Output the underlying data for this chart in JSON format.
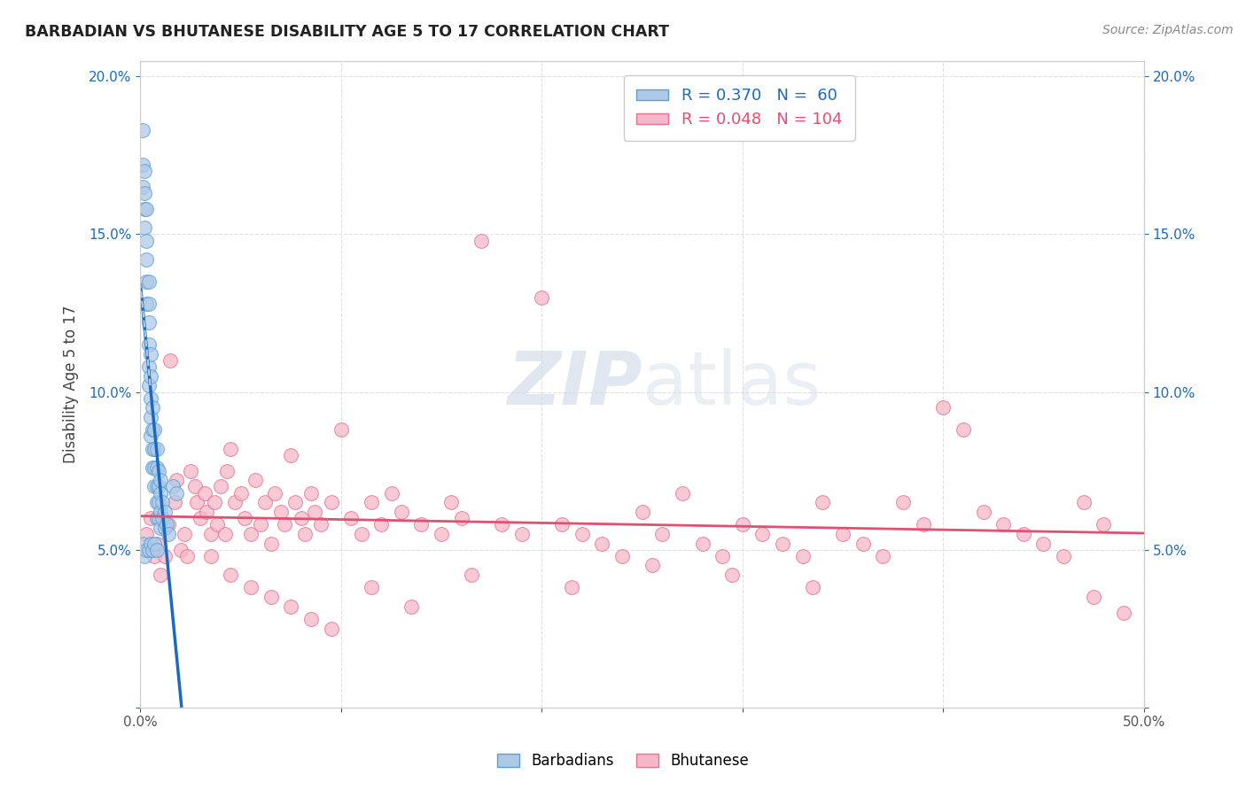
{
  "title": "BARBADIAN VS BHUTANESE DISABILITY AGE 5 TO 17 CORRELATION CHART",
  "source": "Source: ZipAtlas.com",
  "ylabel": "Disability Age 5 to 17",
  "xlim": [
    0.0,
    0.5
  ],
  "ylim": [
    0.0,
    0.205
  ],
  "xticks": [
    0.0,
    0.1,
    0.2,
    0.3,
    0.4,
    0.5
  ],
  "xticklabels": [
    "0.0%",
    "",
    "",
    "",
    "",
    "50.0%"
  ],
  "yticks": [
    0.0,
    0.05,
    0.1,
    0.15,
    0.2
  ],
  "yticklabels_left": [
    "",
    "5.0%",
    "10.0%",
    "15.0%",
    "20.0%"
  ],
  "yticklabels_right": [
    "",
    "5.0%",
    "10.0%",
    "15.0%",
    "20.0%"
  ],
  "legend_barbadian_R": 0.37,
  "legend_barbadian_N": 60,
  "legend_bhutanese_R": 0.048,
  "legend_bhutanese_N": 104,
  "barbadian_color": "#aec9e8",
  "bhutanese_color": "#f4b8c8",
  "barbadian_edge": "#5a9fd4",
  "bhutanese_edge": "#e87090",
  "blue_line_color": "#1a6bbf",
  "pink_line_color": "#e05070",
  "dash_line_color": "#bbccdd",
  "watermark_color": "#ccd8e8",
  "background_color": "#ffffff",
  "grid_color": "#e0e0e0",
  "title_color": "#222222",
  "source_color": "#888888",
  "tick_color_blue": "#1a6bbf",
  "tick_color_gray": "#555555",
  "barbadian_x": [
    0.001,
    0.001,
    0.001,
    0.002,
    0.002,
    0.002,
    0.002,
    0.003,
    0.003,
    0.003,
    0.003,
    0.003,
    0.004,
    0.004,
    0.004,
    0.004,
    0.004,
    0.004,
    0.005,
    0.005,
    0.005,
    0.005,
    0.005,
    0.006,
    0.006,
    0.006,
    0.006,
    0.007,
    0.007,
    0.007,
    0.007,
    0.008,
    0.008,
    0.008,
    0.008,
    0.008,
    0.009,
    0.009,
    0.009,
    0.009,
    0.01,
    0.01,
    0.01,
    0.01,
    0.011,
    0.011,
    0.012,
    0.012,
    0.013,
    0.014,
    0.001,
    0.002,
    0.003,
    0.004,
    0.005,
    0.006,
    0.007,
    0.008,
    0.016,
    0.018
  ],
  "barbadian_y": [
    0.183,
    0.172,
    0.165,
    0.17,
    0.163,
    0.158,
    0.152,
    0.158,
    0.148,
    0.142,
    0.135,
    0.128,
    0.135,
    0.128,
    0.122,
    0.115,
    0.108,
    0.102,
    0.112,
    0.105,
    0.098,
    0.092,
    0.086,
    0.095,
    0.088,
    0.082,
    0.076,
    0.088,
    0.082,
    0.076,
    0.07,
    0.082,
    0.076,
    0.07,
    0.065,
    0.06,
    0.075,
    0.07,
    0.065,
    0.06,
    0.072,
    0.068,
    0.062,
    0.057,
    0.065,
    0.06,
    0.062,
    0.057,
    0.058,
    0.055,
    0.052,
    0.048,
    0.05,
    0.05,
    0.052,
    0.05,
    0.052,
    0.05,
    0.07,
    0.068
  ],
  "bhutanese_x": [
    0.003,
    0.005,
    0.007,
    0.008,
    0.01,
    0.012,
    0.014,
    0.015,
    0.017,
    0.018,
    0.02,
    0.022,
    0.023,
    0.025,
    0.027,
    0.028,
    0.03,
    0.032,
    0.033,
    0.035,
    0.037,
    0.038,
    0.04,
    0.042,
    0.043,
    0.045,
    0.047,
    0.05,
    0.052,
    0.055,
    0.057,
    0.06,
    0.062,
    0.065,
    0.067,
    0.07,
    0.072,
    0.075,
    0.077,
    0.08,
    0.082,
    0.085,
    0.087,
    0.09,
    0.095,
    0.1,
    0.105,
    0.11,
    0.115,
    0.12,
    0.125,
    0.13,
    0.14,
    0.15,
    0.155,
    0.16,
    0.17,
    0.18,
    0.19,
    0.2,
    0.21,
    0.22,
    0.23,
    0.24,
    0.25,
    0.26,
    0.27,
    0.28,
    0.29,
    0.3,
    0.31,
    0.32,
    0.33,
    0.34,
    0.35,
    0.36,
    0.37,
    0.38,
    0.39,
    0.4,
    0.41,
    0.42,
    0.43,
    0.44,
    0.45,
    0.46,
    0.47,
    0.48,
    0.49,
    0.035,
    0.045,
    0.055,
    0.065,
    0.075,
    0.085,
    0.095,
    0.115,
    0.135,
    0.165,
    0.215,
    0.255,
    0.295,
    0.335,
    0.475
  ],
  "bhutanese_y": [
    0.055,
    0.06,
    0.048,
    0.052,
    0.042,
    0.048,
    0.058,
    0.11,
    0.065,
    0.072,
    0.05,
    0.055,
    0.048,
    0.075,
    0.07,
    0.065,
    0.06,
    0.068,
    0.062,
    0.055,
    0.065,
    0.058,
    0.07,
    0.055,
    0.075,
    0.082,
    0.065,
    0.068,
    0.06,
    0.055,
    0.072,
    0.058,
    0.065,
    0.052,
    0.068,
    0.062,
    0.058,
    0.08,
    0.065,
    0.06,
    0.055,
    0.068,
    0.062,
    0.058,
    0.065,
    0.088,
    0.06,
    0.055,
    0.065,
    0.058,
    0.068,
    0.062,
    0.058,
    0.055,
    0.065,
    0.06,
    0.148,
    0.058,
    0.055,
    0.13,
    0.058,
    0.055,
    0.052,
    0.048,
    0.062,
    0.055,
    0.068,
    0.052,
    0.048,
    0.058,
    0.055,
    0.052,
    0.048,
    0.065,
    0.055,
    0.052,
    0.048,
    0.065,
    0.058,
    0.095,
    0.088,
    0.062,
    0.058,
    0.055,
    0.052,
    0.048,
    0.065,
    0.058,
    0.03,
    0.048,
    0.042,
    0.038,
    0.035,
    0.032,
    0.028,
    0.025,
    0.038,
    0.032,
    0.042,
    0.038,
    0.045,
    0.042,
    0.038,
    0.035
  ]
}
